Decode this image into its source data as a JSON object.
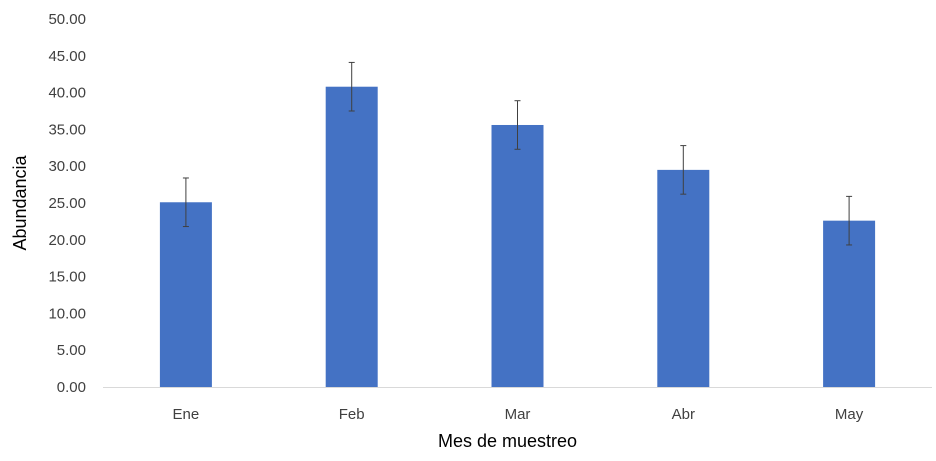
{
  "chart_data": {
    "type": "bar",
    "title": "",
    "xlabel": "Mes de muestreo",
    "ylabel": "Abundancia",
    "categories": [
      "Ene",
      "Feb",
      "Mar",
      "Abr",
      "May"
    ],
    "series": [
      {
        "values": [
          25.1,
          40.8,
          35.6,
          29.5,
          22.6
        ],
        "error": [
          3.3,
          3.3,
          3.3,
          3.3,
          3.3
        ]
      }
    ],
    "ylim": [
      0,
      50
    ],
    "yticks": [
      "0.00",
      "5.00",
      "10.00",
      "15.00",
      "20.00",
      "25.00",
      "30.00",
      "35.00",
      "40.00",
      "45.00",
      "50.00"
    ],
    "grid": false,
    "legend": "none",
    "colors": {
      "bar": "#4472C4",
      "error_bar": "#404040",
      "axis_line": "#D9D9D9"
    }
  }
}
